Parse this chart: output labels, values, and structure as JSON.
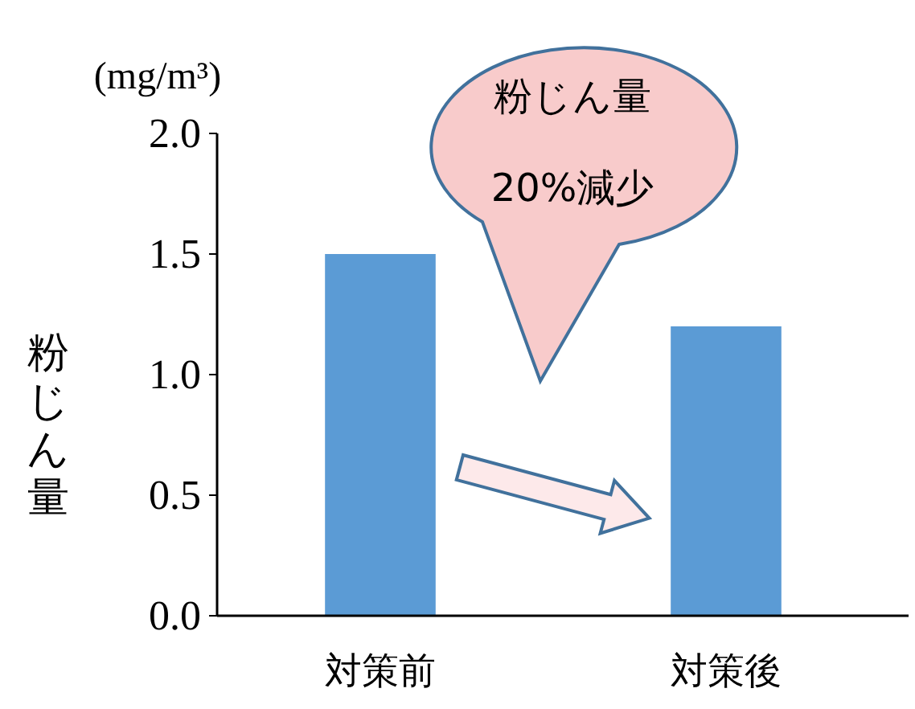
{
  "chart_data": {
    "type": "bar",
    "categories": [
      "対策前",
      "対策後"
    ],
    "values": [
      1.5,
      1.2
    ],
    "color": "#5b9bd5",
    "ylim": [
      0,
      2
    ],
    "yticks": [
      {
        "value": 0,
        "label": "0.0"
      },
      {
        "value": 0.5,
        "label": "0.5"
      },
      {
        "value": 1,
        "label": "1.0"
      },
      {
        "value": 1.5,
        "label": "1.5"
      },
      {
        "value": 2,
        "label": "2.0"
      }
    ],
    "ylabel": "粉じん量",
    "annotations": [
      "(mg/m³)",
      "粉じん量",
      "20%減少"
    ]
  }
}
